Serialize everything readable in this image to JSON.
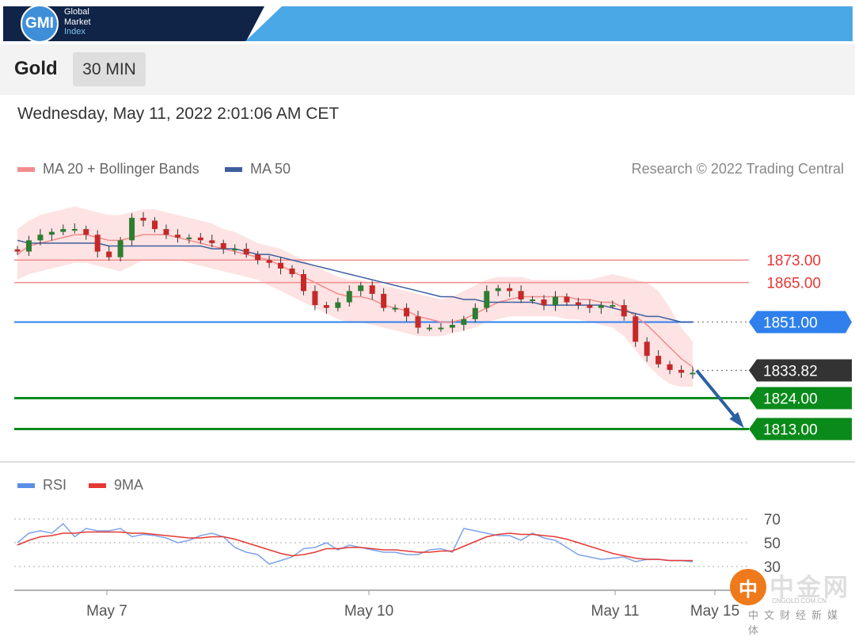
{
  "header": {
    "logo_abbr": "GMI",
    "logo_line1": "Global",
    "logo_line2": "Market",
    "logo_line3": "Index"
  },
  "instrument": {
    "name": "Gold",
    "timeframe": "30 MIN"
  },
  "timestamp": "Wednesday, May 11, 2022 2:01:06 AM CET",
  "legend_main": [
    {
      "label": "MA 20 + Bollinger Bands",
      "color": "#f28c8c"
    },
    {
      "label": "MA 50",
      "color": "#3e5f9e"
    }
  ],
  "credit": "Research © 2022 Trading Central",
  "legend_rsi": [
    {
      "label": "RSI",
      "color": "#5b8ee6"
    },
    {
      "label": "9MA",
      "color": "#e53935"
    }
  ],
  "watermark": {
    "mark": "中",
    "name": "中金网",
    "url": "CNGOLD.COM.CN",
    "slogan": "中文财经新媒体"
  },
  "chart_data": {
    "type": "line",
    "x_ticks": [
      "May 7",
      "May 10",
      "May 11",
      "May 15"
    ],
    "ylim": [
      1805,
      1895
    ],
    "current_price": 1833.82,
    "levels": [
      {
        "value": 1873.0,
        "label": "1873.00",
        "kind": "resistance",
        "color": "#f28c8c"
      },
      {
        "value": 1865.0,
        "label": "1865.00",
        "kind": "resistance",
        "color": "#f28c8c"
      },
      {
        "value": 1851.0,
        "label": "1851.00",
        "kind": "pivot",
        "color": "#2f80ed"
      },
      {
        "value": 1833.82,
        "label": "1833.82",
        "kind": "last",
        "color": "#333333"
      },
      {
        "value": 1824.0,
        "label": "1824.00",
        "kind": "support",
        "color": "#0a8a1a"
      },
      {
        "value": 1813.0,
        "label": "1813.00",
        "kind": "support",
        "color": "#0a8a1a"
      }
    ],
    "close": [
      1876,
      1880,
      1882,
      1883,
      1884,
      1884,
      1882,
      1876,
      1874,
      1880,
      1888,
      1887,
      1884,
      1882,
      1881,
      1881,
      1880,
      1879,
      1877,
      1877,
      1875,
      1873,
      1872,
      1870,
      1868,
      1862,
      1857,
      1856,
      1858,
      1862,
      1864,
      1861,
      1856,
      1856,
      1853,
      1849,
      1849,
      1849,
      1850,
      1852,
      1856,
      1862,
      1863,
      1862,
      1859,
      1859,
      1857,
      1860,
      1858,
      1857,
      1856,
      1857,
      1857,
      1853,
      1844,
      1839,
      1836,
      1834,
      1833,
      1833
    ],
    "ma20": [
      1875,
      1878,
      1879,
      1880,
      1881,
      1882,
      1882,
      1881,
      1880,
      1880,
      1881,
      1882,
      1882,
      1882,
      1881,
      1880,
      1879,
      1878,
      1877,
      1876,
      1875,
      1874,
      1873,
      1871,
      1869,
      1867,
      1865,
      1863,
      1861,
      1860,
      1860,
      1859,
      1857,
      1856,
      1855,
      1853,
      1852,
      1851,
      1851,
      1852,
      1854,
      1856,
      1858,
      1859,
      1860,
      1860,
      1860,
      1860,
      1860,
      1859,
      1859,
      1858,
      1858,
      1856,
      1853,
      1850,
      1846,
      1842,
      1838,
      1835
    ],
    "ma50": [
      1880,
      1879,
      1879,
      1879,
      1879,
      1879,
      1879,
      1879,
      1878,
      1878,
      1878,
      1878,
      1878,
      1878,
      1878,
      1878,
      1878,
      1877,
      1877,
      1877,
      1876,
      1875,
      1875,
      1874,
      1873,
      1872,
      1871,
      1870,
      1869,
      1868,
      1867,
      1866,
      1865,
      1864,
      1863,
      1862,
      1861,
      1860,
      1860,
      1859,
      1859,
      1858,
      1858,
      1858,
      1858,
      1858,
      1857,
      1857,
      1857,
      1857,
      1857,
      1857,
      1856,
      1855,
      1854,
      1853,
      1853,
      1852,
      1851,
      1851
    ],
    "bb_upper": [
      1884,
      1887,
      1889,
      1890,
      1891,
      1892,
      1891,
      1890,
      1889,
      1889,
      1890,
      1891,
      1891,
      1890,
      1889,
      1888,
      1887,
      1886,
      1884,
      1883,
      1881,
      1879,
      1878,
      1877,
      1875,
      1873,
      1871,
      1869,
      1867,
      1866,
      1866,
      1865,
      1864,
      1863,
      1862,
      1861,
      1860,
      1859,
      1860,
      1862,
      1864,
      1866,
      1867,
      1867,
      1867,
      1866,
      1866,
      1866,
      1866,
      1866,
      1866,
      1867,
      1868,
      1867,
      1866,
      1865,
      1862,
      1856,
      1849,
      1844
    ],
    "bb_lower": [
      1866,
      1868,
      1869,
      1870,
      1871,
      1872,
      1872,
      1871,
      1870,
      1869,
      1871,
      1873,
      1873,
      1873,
      1873,
      1872,
      1871,
      1870,
      1869,
      1868,
      1867,
      1866,
      1864,
      1862,
      1860,
      1858,
      1856,
      1854,
      1852,
      1851,
      1851,
      1850,
      1849,
      1848,
      1847,
      1846,
      1846,
      1846,
      1847,
      1848,
      1849,
      1851,
      1852,
      1853,
      1853,
      1853,
      1853,
      1853,
      1852,
      1852,
      1851,
      1850,
      1849,
      1846,
      1841,
      1836,
      1832,
      1829,
      1828,
      1828
    ],
    "rsi": [
      50,
      58,
      60,
      58,
      66,
      55,
      62,
      60,
      60,
      62,
      55,
      57,
      56,
      54,
      50,
      52,
      56,
      58,
      55,
      46,
      42,
      40,
      32,
      35,
      38,
      45,
      46,
      50,
      44,
      48,
      46,
      44,
      42,
      42,
      40,
      40,
      44,
      45,
      42,
      62,
      60,
      58,
      56,
      56,
      52,
      58,
      54,
      52,
      46,
      40,
      38,
      36,
      37,
      38,
      34,
      36,
      36,
      35,
      35,
      34
    ],
    "rsi_ma": [
      48,
      52,
      55,
      56,
      58,
      58,
      59,
      59,
      59,
      59,
      58,
      58,
      57,
      56,
      55,
      54,
      54,
      55,
      55,
      53,
      50,
      47,
      44,
      41,
      39,
      40,
      42,
      45,
      45,
      46,
      46,
      45,
      44,
      44,
      43,
      42,
      42,
      43,
      43,
      47,
      51,
      55,
      57,
      58,
      57,
      57,
      56,
      55,
      53,
      50,
      47,
      44,
      41,
      39,
      37,
      36,
      36,
      35,
      35,
      35
    ],
    "rsi_ticks": [
      70,
      50,
      30
    ],
    "rsi_ylim": [
      10,
      80
    ]
  }
}
